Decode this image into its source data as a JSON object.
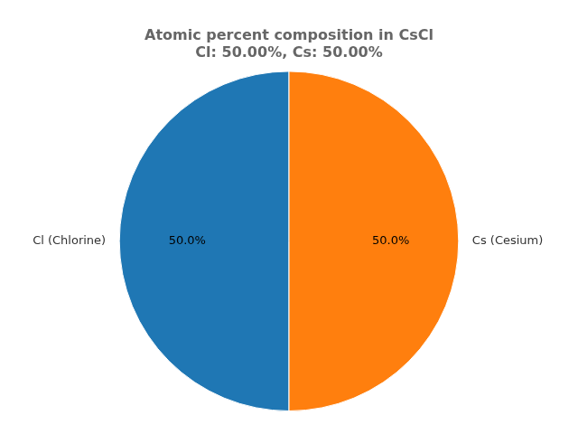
{
  "chart_data": {
    "type": "pie",
    "title": "Atomic percent composition in CsCl\nCl: 50.00%, Cs: 50.00%",
    "categories": [
      "Cl (Chlorine)",
      "Cs (Cesium)"
    ],
    "values": [
      50.0,
      50.0
    ],
    "value_labels": [
      "50.0%",
      "50.0%"
    ],
    "colors": [
      "#1f77b4",
      "#ff7f0e"
    ],
    "data_labels": true
  }
}
